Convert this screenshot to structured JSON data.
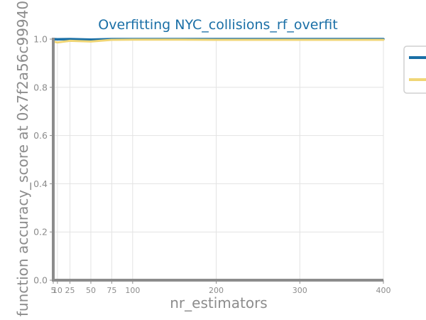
{
  "chart_data": {
    "type": "line",
    "title": "Overfitting NYC_collisions_rf_overfit",
    "xlabel": "nr_estimators",
    "ylabel": "function accuracy_score at 0x7f2a56c99940",
    "xlim": [
      5,
      400
    ],
    "ylim": [
      0.0,
      1.0
    ],
    "grid": true,
    "x": [
      5,
      10,
      25,
      50,
      75,
      100,
      150,
      200,
      250,
      300,
      350,
      400
    ],
    "x_ticks": [
      5,
      10,
      25,
      50,
      75,
      100,
      200,
      300,
      400
    ],
    "y_ticks": [
      0.0,
      0.2,
      0.4,
      0.6,
      0.8,
      1.0
    ],
    "legend_position": "right (partially cut off)",
    "series": [
      {
        "color": "#1a6fa6",
        "values": [
          1.0,
          0.999,
          1.0,
          0.998,
          1.0,
          1.0,
          1.0,
          1.0,
          1.0,
          1.0,
          1.0,
          1.0
        ]
      },
      {
        "color": "#f0d676",
        "values": [
          0.99,
          0.986,
          0.993,
          0.99,
          0.997,
          0.998,
          0.998,
          0.997,
          0.997,
          0.997,
          0.997,
          0.997
        ]
      }
    ]
  }
}
